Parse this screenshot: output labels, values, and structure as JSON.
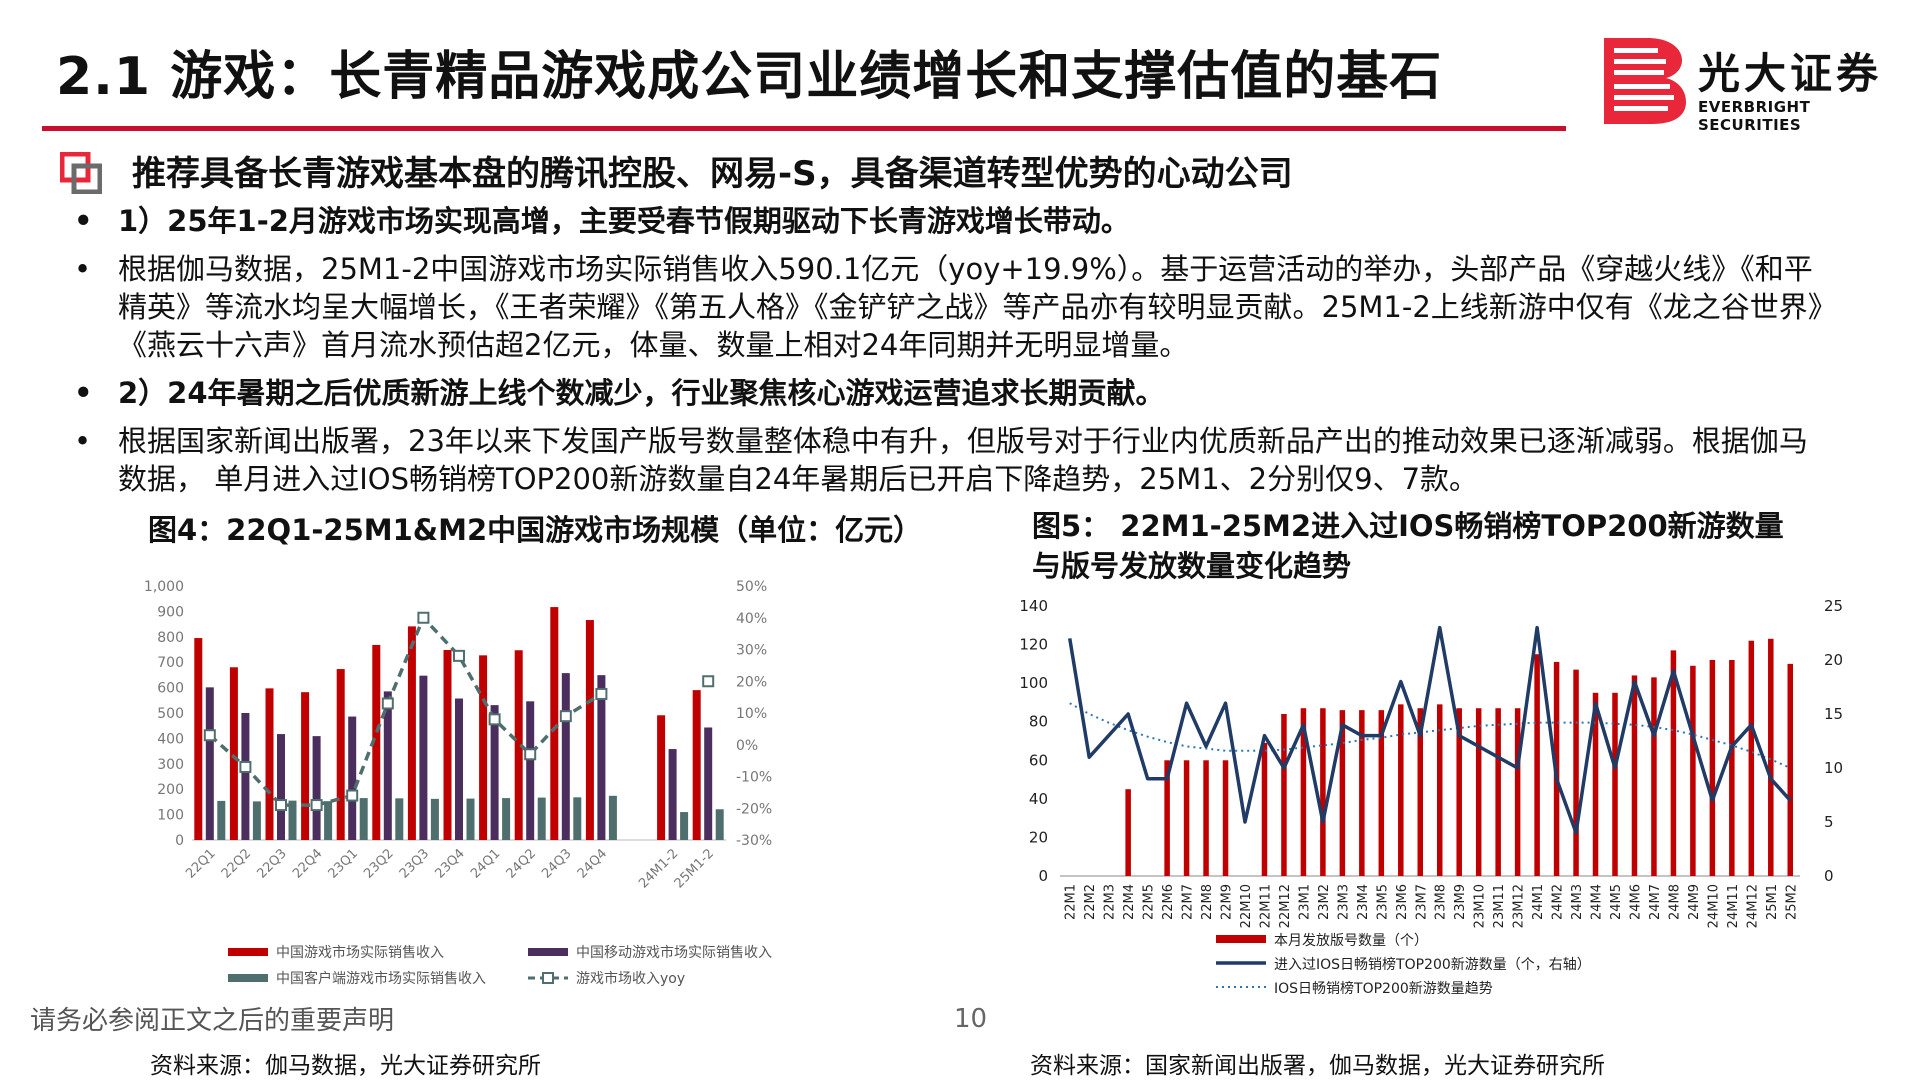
{
  "page": {
    "title": "2.1 游戏：长青精品游戏成公司业绩增长和支撑估值的基石",
    "logo_name": "光大证券",
    "logo_en": "EVERBRIGHT SECURITIES",
    "headline": "推荐具备长青游戏基本盘的腾讯控股、网易-S，具备渠道转型优势的心动公司",
    "bullets": [
      {
        "text": "1）25年1-2月游戏市场实现高增，主要受春节假期驱动下长青游戏增长带动。",
        "bold": true
      },
      {
        "text": "根据伽马数据，25M1-2中国游戏市场实际销售收入590.1亿元（yoy+19.9%）。基于运营活动的举办，头部产品《穿越火线》《和平精英》等流水均呈大幅增长，《王者荣耀》《第五人格》《金铲铲之战》等产品亦有较明显贡献。25M1-2上线新游中仅有《龙之谷世界》《燕云十六声》首月流水预估超2亿元，体量、数量上相对24年同期并无明显增量。",
        "bold": false
      },
      {
        "text": "2）24年暑期之后优质新游上线个数减少，行业聚焦核心游戏运营追求长期贡献。",
        "bold": true
      },
      {
        "text": "根据国家新闻出版署，23年以来下发国产版号数量整体稳中有升，但版号对于行业内优质新品产出的推动效果已逐渐减弱。根据伽马数据， 单月进入过IOS畅销榜TOP200新游数量自24年暑期后已开启下降趋势，25M1、2分别仅9、7款。",
        "bold": false
      }
    ],
    "bullet_mark": "•",
    "fig4_title": "图4：22Q1-25M1&M2中国游戏市场规模（单位：亿元）",
    "fig5_title_line1": "图5： 22M1-25M2进入过IOS畅销榜TOP200新游数量",
    "fig5_title_line2": "与版号发放数量变化趋势",
    "fig4_source": "资料来源：伽马数据，光大证券研究所",
    "fig5_source": "资料来源：国家新闻出版署，伽马数据，光大证券研究所",
    "disclaimer": "请务必参阅正文之后的重要声明",
    "page_number": "10",
    "colors": {
      "red": "#c00000",
      "purple": "#4b2e5e",
      "teal": "#4f6f6f",
      "navy": "#1f3b66",
      "dotted": "#2e75b6",
      "accent": "#c8102e"
    }
  },
  "chart_data": [
    {
      "type": "bar",
      "categories": [
        "22Q1",
        "22Q2",
        "22Q3",
        "22Q4",
        "23Q1",
        "23Q2",
        "23Q3",
        "23Q4",
        "24Q1",
        "24Q2",
        "24Q3",
        "24Q4",
        "",
        "24M1-2",
        "25M1-2"
      ],
      "ylim": [
        0,
        1000
      ],
      "y_ticks": [
        "0",
        "100",
        "200",
        "300",
        "400",
        "500",
        "600",
        "700",
        "800",
        "900",
        "1,000"
      ],
      "y2lim": [
        -30,
        50
      ],
      "y2_ticks": [
        "-30%",
        "-20%",
        "-10%",
        "0%",
        "10%",
        "20%",
        "30%",
        "40%",
        "50%"
      ],
      "series": [
        {
          "name": "中国游戏市场实际销售收入",
          "kind": "bar",
          "values": [
            795,
            680,
            597,
            582,
            673,
            768,
            841,
            748,
            727,
            747,
            917,
            866,
            null,
            491,
            590
          ]
        },
        {
          "name": "中国移动游戏市场实际销售收入",
          "kind": "bar",
          "values": [
            601,
            500,
            417,
            409,
            486,
            585,
            647,
            557,
            531,
            546,
            657,
            649,
            null,
            358,
            443
          ]
        },
        {
          "name": "中国客户端游戏市场实际销售收入",
          "kind": "bar",
          "values": [
            154,
            152,
            155,
            153,
            165,
            164,
            162,
            163,
            165,
            167,
            168,
            174,
            null,
            110,
            121
          ]
        },
        {
          "name": "游戏市场收入yoy",
          "kind": "line",
          "axis": "right",
          "values": [
            3,
            -7,
            -19,
            -19,
            -16,
            13,
            40,
            28,
            8,
            -3,
            9,
            16,
            null,
            null,
            20
          ]
        }
      ],
      "legend_position": "bottom"
    },
    {
      "type": "bar",
      "categories": [
        "22M1",
        "22M2",
        "22M3",
        "22M4",
        "22M5",
        "22M6",
        "22M7",
        "22M8",
        "22M9",
        "22M10",
        "22M11",
        "22M12",
        "23M1",
        "23M2",
        "23M3",
        "23M4",
        "23M5",
        "23M6",
        "23M7",
        "23M8",
        "23M9",
        "23M10",
        "23M11",
        "23M12",
        "24M1",
        "24M2",
        "24M3",
        "24M4",
        "24M5",
        "24M6",
        "24M7",
        "24M8",
        "24M9",
        "24M10",
        "24M11",
        "24M12",
        "25M1",
        "25M2"
      ],
      "ylim": [
        0,
        140
      ],
      "y_ticks": [
        "0",
        "20",
        "40",
        "60",
        "80",
        "100",
        "120",
        "140"
      ],
      "y2lim": [
        0,
        25
      ],
      "y2_ticks": [
        "0",
        "5",
        "10",
        "15",
        "20",
        "25"
      ],
      "series": [
        {
          "name": "本月发放版号数量（个）",
          "kind": "bar",
          "values": [
            0,
            0,
            0,
            45,
            0,
            60,
            60,
            60,
            60,
            0,
            69,
            84,
            87,
            87,
            86,
            86,
            86,
            89,
            87,
            89,
            87,
            87,
            87,
            87,
            115,
            111,
            107,
            95,
            95,
            104,
            103,
            117,
            109,
            112,
            112,
            122,
            123,
            110
          ]
        },
        {
          "name": "进入过IOS日畅销榜TOP200新游数量（个，右轴）",
          "kind": "line",
          "axis": "right",
          "values": [
            22,
            11,
            13,
            15,
            9,
            9,
            16,
            12,
            16,
            5,
            13,
            10,
            14,
            5,
            14,
            13,
            13,
            18,
            13,
            23,
            13,
            12,
            11,
            10,
            23,
            9,
            4,
            16,
            10,
            18,
            13,
            19,
            13,
            7,
            12,
            14,
            9,
            7
          ]
        },
        {
          "name": "IOS日畅销榜TOP200新游数量趋势",
          "kind": "dotted",
          "axis": "right",
          "values": [
            16.0,
            15.0,
            14.2,
            13.5,
            12.9,
            12.4,
            12.0,
            11.8,
            11.6,
            11.6,
            11.6,
            11.7,
            11.9,
            12.1,
            12.3,
            12.6,
            12.8,
            13.1,
            13.3,
            13.5,
            13.7,
            13.9,
            14.0,
            14.1,
            14.2,
            14.2,
            14.2,
            14.2,
            14.1,
            14.0,
            13.8,
            13.5,
            13.1,
            12.6,
            12.1,
            11.5,
            10.8,
            10.0
          ]
        }
      ],
      "legend_position": "bottom"
    }
  ]
}
